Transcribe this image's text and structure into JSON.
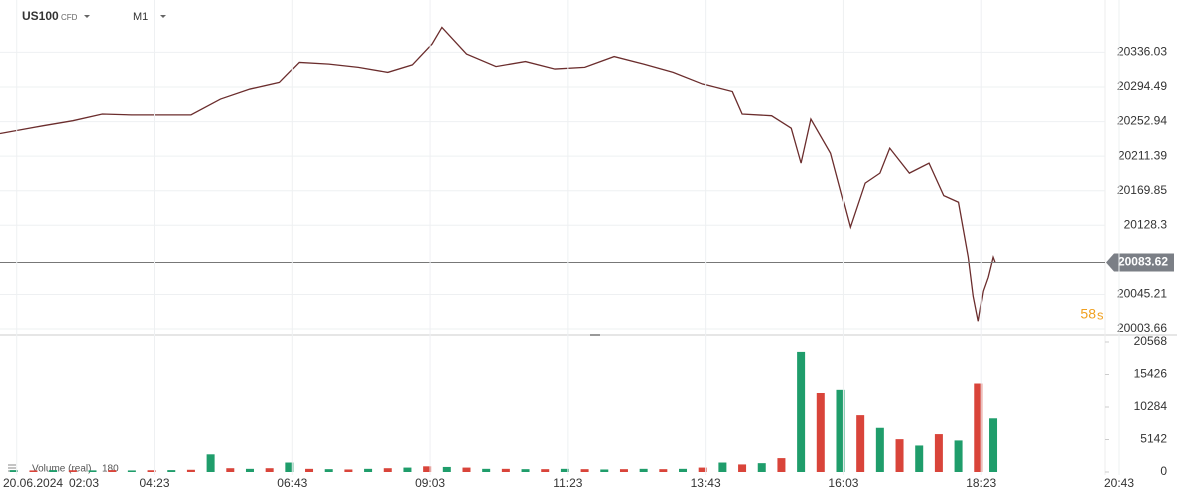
{
  "header": {
    "symbol": "US100",
    "symbol_type": "CFD",
    "timeframe": "M1"
  },
  "chart_data": [
    {
      "type": "line",
      "series": [
        {
          "name": "US100",
          "color": "#6b2d2d",
          "x": [
            "01:46",
            "02:30",
            "03:00",
            "03:30",
            "04:00",
            "04:30",
            "05:00",
            "05:30",
            "06:00",
            "06:30",
            "06:50",
            "07:20",
            "07:50",
            "08:20",
            "08:45",
            "09:05",
            "09:15",
            "09:40",
            "10:10",
            "10:40",
            "11:10",
            "11:40",
            "12:10",
            "12:40",
            "13:10",
            "13:40",
            "14:10",
            "14:20",
            "14:50",
            "15:10",
            "15:20",
            "15:30",
            "15:50",
            "16:10",
            "16:25",
            "16:40",
            "16:50",
            "17:10",
            "17:30",
            "17:45",
            "18:00",
            "18:10",
            "18:15",
            "18:20",
            "18:25",
            "18:30",
            "18:35",
            "18:37"
          ],
          "values": [
            20238.6,
            20248,
            20254,
            20262,
            20261,
            20261,
            20261,
            20280,
            20292,
            20300,
            20324,
            20322,
            20318,
            20312,
            20321,
            20346,
            20366,
            20334,
            20319,
            20325,
            20316,
            20318,
            20331,
            20322,
            20312,
            20298,
            20289,
            20262,
            20260,
            20245,
            20203,
            20256,
            20215,
            20126,
            20179,
            20191,
            20221,
            20191,
            20203,
            20164,
            20156,
            20090,
            20043,
            20013,
            20049,
            20066,
            20090,
            20083.62
          ]
        }
      ],
      "xlim": [
        "01:46",
        "20:43"
      ],
      "ylim": [
        19996.5,
        20399
      ],
      "yticks": [
        20003.66,
        20045.21,
        20128.3,
        20169.85,
        20211.39,
        20252.94,
        20294.49,
        20336.03
      ],
      "current_price": 20083.62,
      "countdown": "58",
      "countdown_unit": "s",
      "grid": true
    },
    {
      "type": "bar",
      "date": "20.06.2024",
      "series": [
        {
          "name": "Volume (real)",
          "color": "#1f9d6b",
          "down_color": "#d9443a",
          "x": [
            "02:00",
            "02:20",
            "02:40",
            "03:00",
            "03:20",
            "03:40",
            "04:00",
            "04:20",
            "04:40",
            "05:00",
            "05:20",
            "05:40",
            "06:00",
            "06:20",
            "06:40",
            "07:00",
            "07:20",
            "07:40",
            "08:00",
            "08:20",
            "08:40",
            "09:00",
            "09:20",
            "09:40",
            "10:00",
            "10:20",
            "10:40",
            "11:00",
            "11:20",
            "11:40",
            "12:00",
            "12:20",
            "12:40",
            "13:00",
            "13:20",
            "13:40",
            "14:00",
            "14:20",
            "14:40",
            "15:00",
            "15:20",
            "15:40",
            "16:00",
            "16:20",
            "16:40",
            "17:00",
            "17:20",
            "17:40",
            "18:00",
            "18:20",
            "18:35"
          ],
          "values": [
            300,
            250,
            300,
            280,
            260,
            300,
            250,
            280,
            300,
            350,
            2800,
            600,
            500,
            600,
            1500,
            500,
            450,
            400,
            500,
            600,
            700,
            900,
            800,
            700,
            500,
            500,
            450,
            450,
            500,
            450,
            400,
            450,
            500,
            450,
            500,
            700,
            1500,
            1200,
            1400,
            2200,
            19000,
            12500,
            13000,
            9000,
            7000,
            5200,
            4200,
            6000,
            5000,
            14000,
            8500
          ]
        }
      ],
      "last_volume": 180,
      "xlim": [
        "01:46",
        "20:43"
      ],
      "ylim": [
        0,
        20568
      ],
      "yticks": [
        0,
        5142,
        10284,
        15426,
        20568
      ],
      "xticks": [
        "02:03",
        "04:23",
        "06:43",
        "09:03",
        "11:23",
        "13:43",
        "16:03",
        "18:23",
        "20:43"
      ]
    }
  ]
}
